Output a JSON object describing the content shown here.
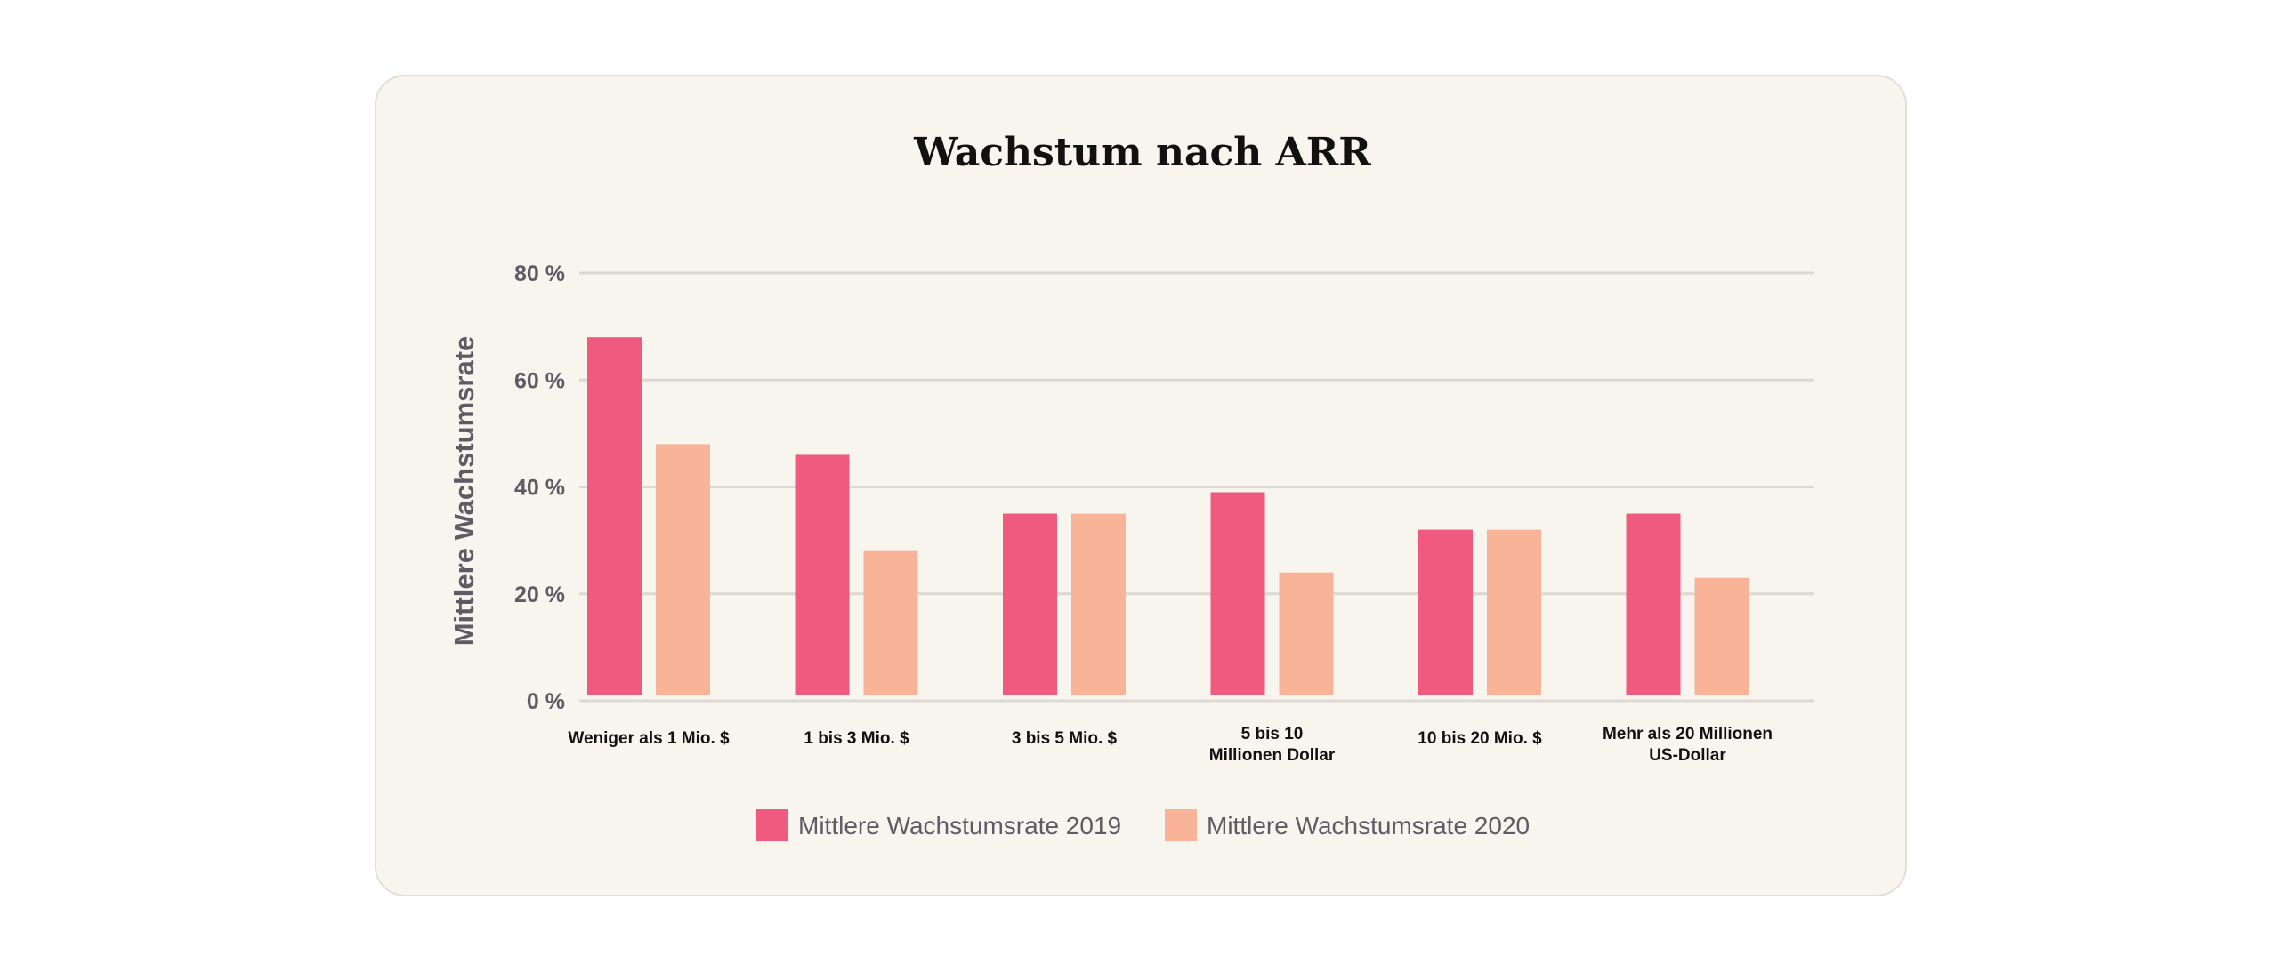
{
  "chart_data": {
    "type": "bar",
    "title": "Wachstum nach ARR",
    "xlabel": "",
    "ylabel": "Mittlere Wachstumsrate",
    "ylim": [
      0,
      80
    ],
    "yticks": [
      "0 %",
      "20 %",
      "40 %",
      "60 %",
      "80 %"
    ],
    "ytick_values": [
      0,
      20,
      40,
      60,
      80
    ],
    "grid": true,
    "legend_position": "bottom-center",
    "categories": [
      [
        "Weniger als 1 Mio. $"
      ],
      [
        "1 bis 3 Mio. $"
      ],
      [
        "3 bis 5 Mio. $"
      ],
      [
        "5 bis 10",
        "Millionen Dollar"
      ],
      [
        "10 bis 20 Mio. $"
      ],
      [
        "Mehr als 20 Millionen",
        "US-Dollar"
      ]
    ],
    "series": [
      {
        "name": "Mittlere Wachstumsrate 2019",
        "color": "#f05a7e",
        "values": [
          68,
          46,
          35,
          39,
          32,
          35
        ]
      },
      {
        "name": "Mittlere Wachstumsrate 2020",
        "color": "#f9b398",
        "values": [
          48,
          28,
          35,
          24,
          32,
          23
        ]
      }
    ]
  }
}
